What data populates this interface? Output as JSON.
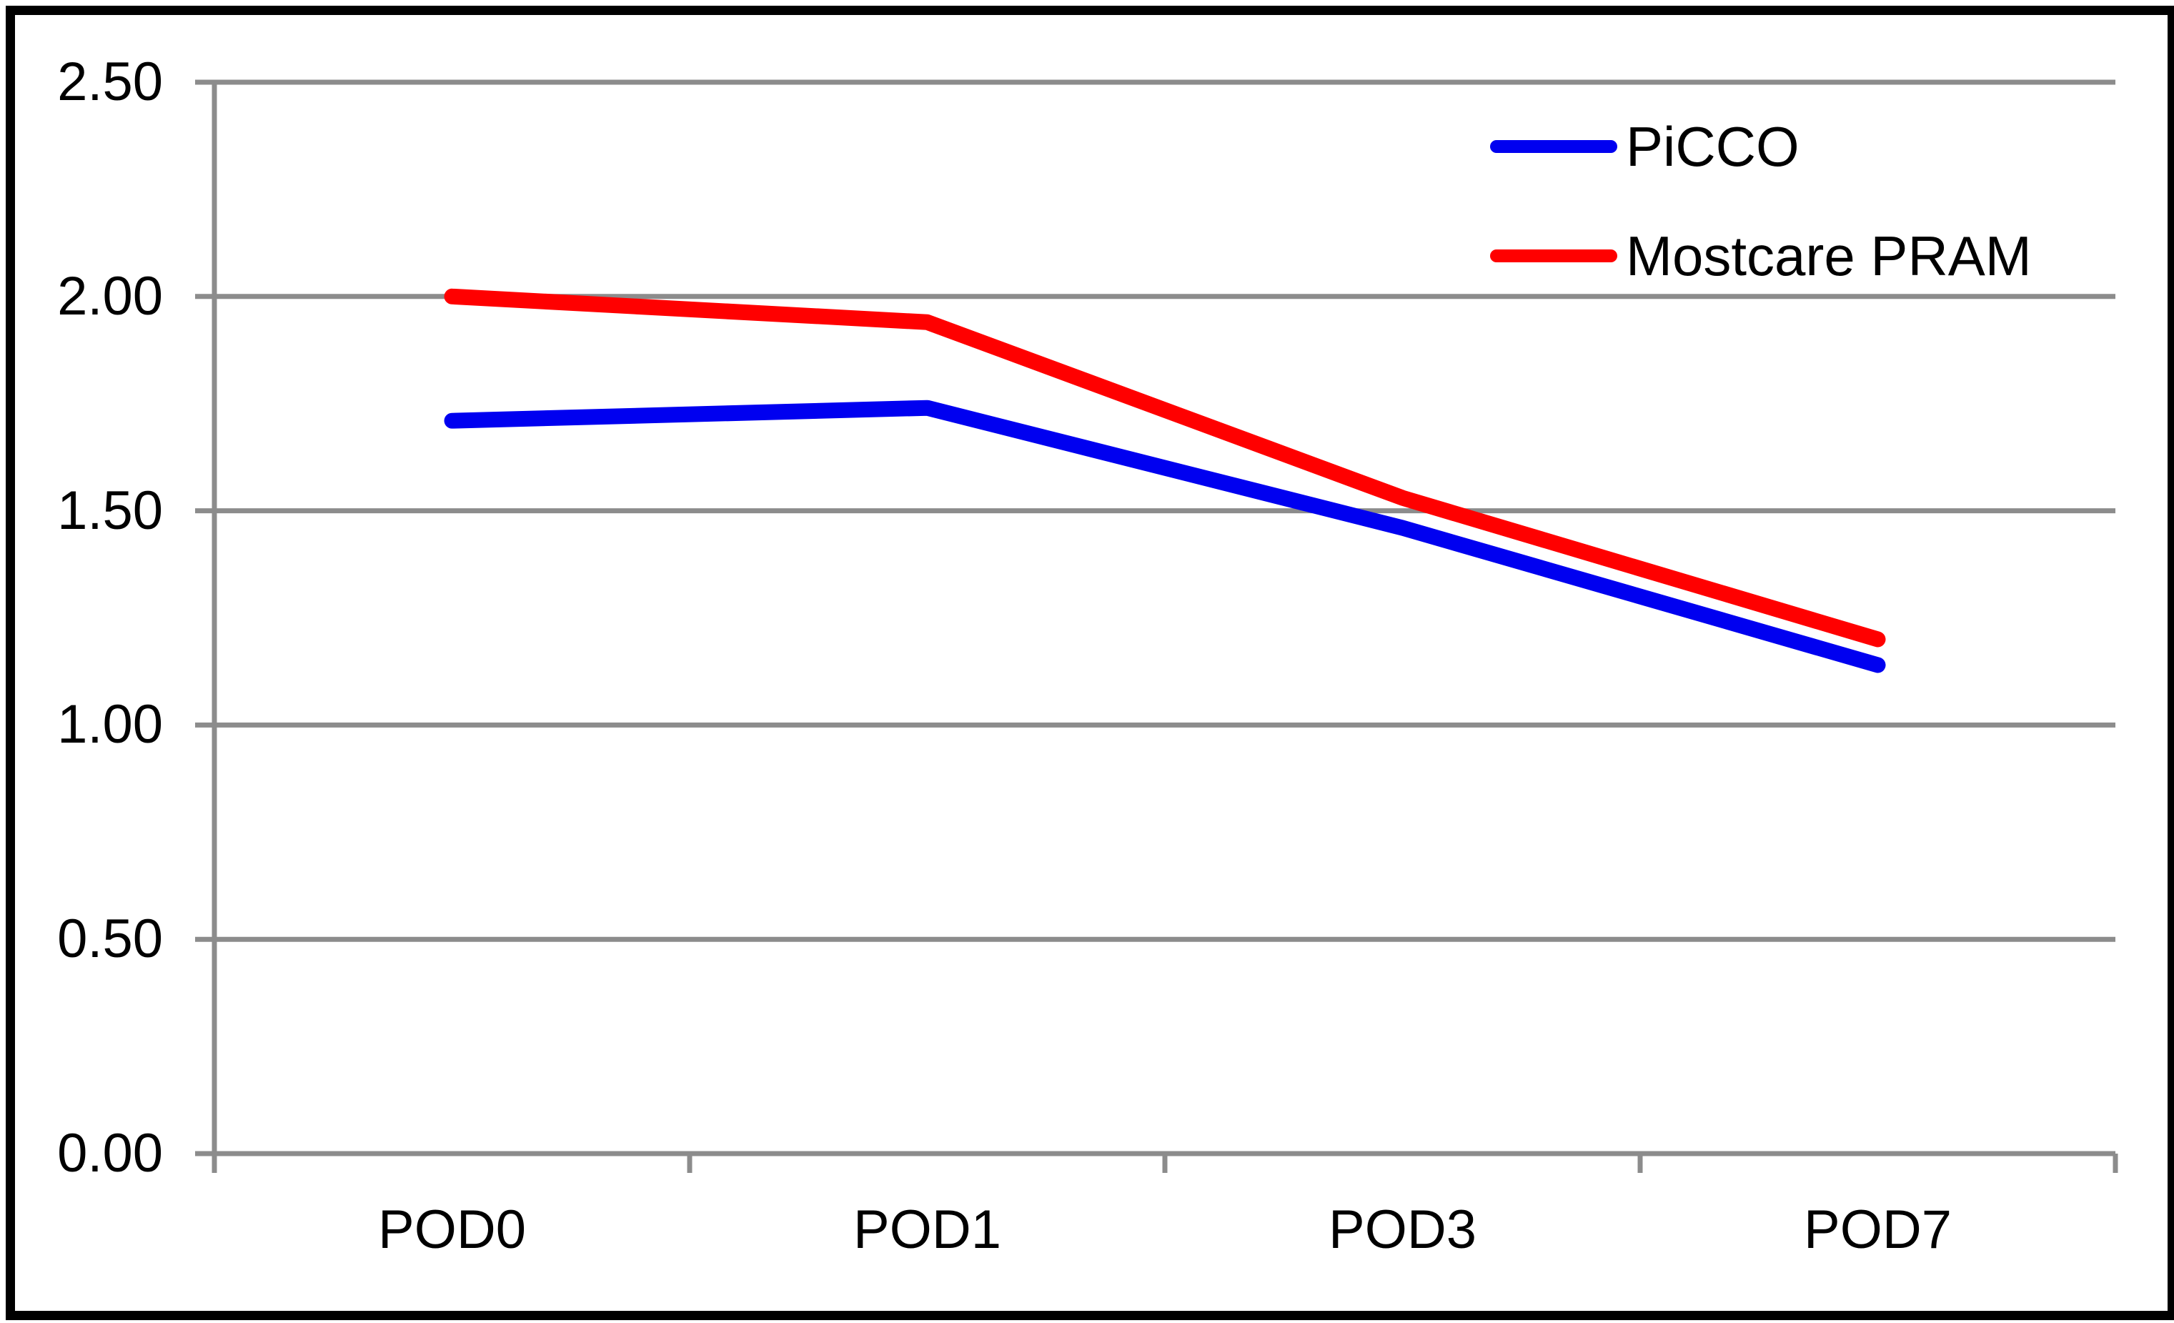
{
  "chart_data": {
    "type": "line",
    "title": "",
    "xlabel": "",
    "ylabel": "",
    "categories": [
      "POD0",
      "POD1",
      "POD3",
      "POD7"
    ],
    "series": [
      {
        "name": "PiCCO",
        "color": "#0000F0",
        "values": [
          1.71,
          1.74,
          1.46,
          1.14
        ]
      },
      {
        "name": "Mostcare PRAM",
        "color": "#FF0000",
        "values": [
          2.0,
          1.94,
          1.53,
          1.2
        ]
      }
    ],
    "ylim": [
      0,
      2.5
    ],
    "y_ticks": [
      0,
      0.5,
      1.0,
      1.5,
      2.0,
      2.5
    ],
    "y_tick_labels": [
      "0.00",
      "0.50",
      "1.00",
      "1.50",
      "2.00",
      "2.50"
    ],
    "grid": "horizontal-only",
    "legend_position": "top-right"
  },
  "colors": {
    "axis_and_grid": "#8C8C8C",
    "border": "#000000",
    "background": "#FFFFFF",
    "text": "#000000"
  }
}
